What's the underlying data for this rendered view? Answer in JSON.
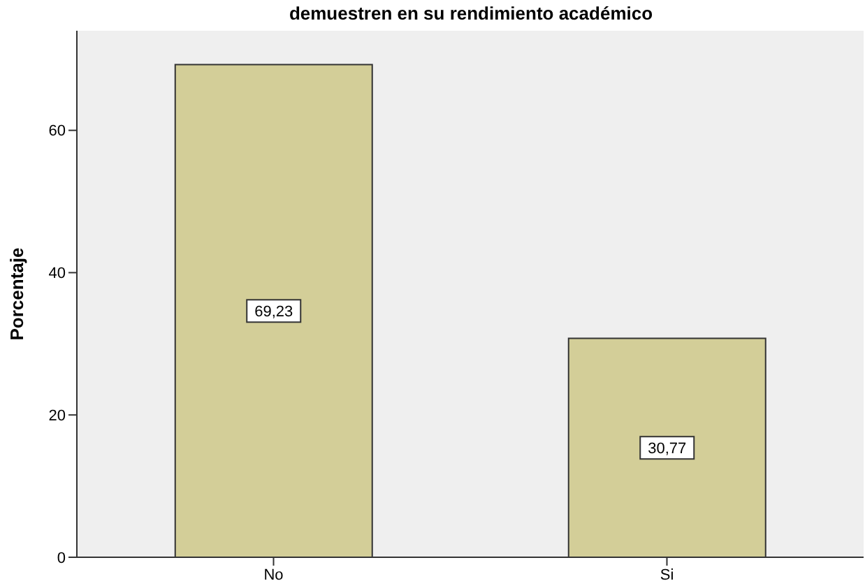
{
  "chart_data": {
    "type": "bar",
    "title": "demuestren en su rendimiento académico",
    "ylabel": "Porcentaje",
    "categories": [
      "No",
      "Si"
    ],
    "values": [
      69.23,
      30.77
    ],
    "value_labels": [
      "69,23",
      "30,77"
    ],
    "color": "#d3ce98",
    "ylim": [
      0,
      74
    ],
    "yticks": [
      0,
      20,
      40,
      60
    ]
  }
}
